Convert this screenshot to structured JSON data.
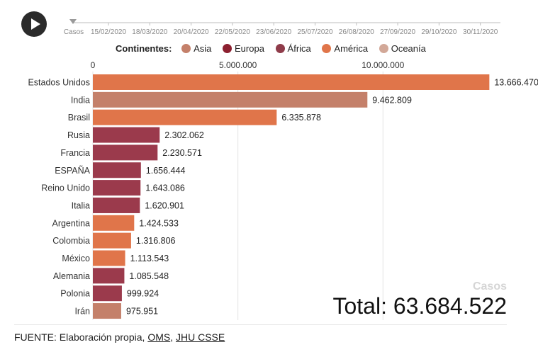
{
  "controls": {
    "play_icon": "play-icon"
  },
  "timeline": {
    "label": "Casos",
    "dates": [
      "15/02/2020",
      "18/03/2020",
      "20/04/2020",
      "22/05/2020",
      "23/06/2020",
      "25/07/2020",
      "26/08/2020",
      "27/09/2020",
      "29/10/2020",
      "30/11/2020"
    ]
  },
  "legend": {
    "title": "Continentes:",
    "items": [
      {
        "label": "Asia",
        "color": "#c4806a"
      },
      {
        "label": "Europa",
        "color": "#8c2030"
      },
      {
        "label": "África",
        "color": "#8f3c4a"
      },
      {
        "label": "América",
        "color": "#e0754a"
      },
      {
        "label": "Oceanía",
        "color": "#d2a898"
      }
    ]
  },
  "chart_data": {
    "type": "bar",
    "orientation": "horizontal",
    "categories": [
      "Estados Unidos",
      "India",
      "Brasil",
      "Rusia",
      "Francia",
      "ESPAÑA",
      "Reino Unido",
      "Italia",
      "Argentina",
      "Colombia",
      "México",
      "Alemania",
      "Polonia",
      "Irán"
    ],
    "values": [
      13666470,
      9462809,
      6335878,
      2302062,
      2230571,
      1656444,
      1643086,
      1620901,
      1424533,
      1316806,
      1113543,
      1085548,
      999924,
      975951
    ],
    "value_labels": [
      "13.666.470",
      "9.462.809",
      "6.335.878",
      "2.302.062",
      "2.230.571",
      "1.656.444",
      "1.643.086",
      "1.620.901",
      "1.424.533",
      "1.316.806",
      "1.113.543",
      "1.085.548",
      "999.924",
      "975.951"
    ],
    "continents": [
      "América",
      "Asia",
      "América",
      "Europa",
      "Europa",
      "Europa",
      "Europa",
      "Europa",
      "América",
      "América",
      "América",
      "Europa",
      "Europa",
      "Asia"
    ],
    "bar_colors": [
      "#e0754a",
      "#c4806a",
      "#e0754a",
      "#9b3a4c",
      "#9b3a4c",
      "#9b3a4c",
      "#9b3a4c",
      "#9b3a4c",
      "#e0754a",
      "#e0754a",
      "#e0754a",
      "#9b3a4c",
      "#9b3a4c",
      "#c4806a"
    ],
    "x_ticks": [
      0,
      5000000,
      10000000
    ],
    "x_tick_labels": [
      "0",
      "5.000.000",
      "10.000.000"
    ],
    "xlim": [
      0,
      14000000
    ],
    "grid": true,
    "legend_position": "top"
  },
  "summary": {
    "metric_label": "Casos",
    "total_text": "Total: 63.684.522"
  },
  "source": {
    "prefix": "FUENTE: Elaboración propia, ",
    "link1": "OMS",
    "separator": ", ",
    "link2": "JHU CSSE"
  }
}
